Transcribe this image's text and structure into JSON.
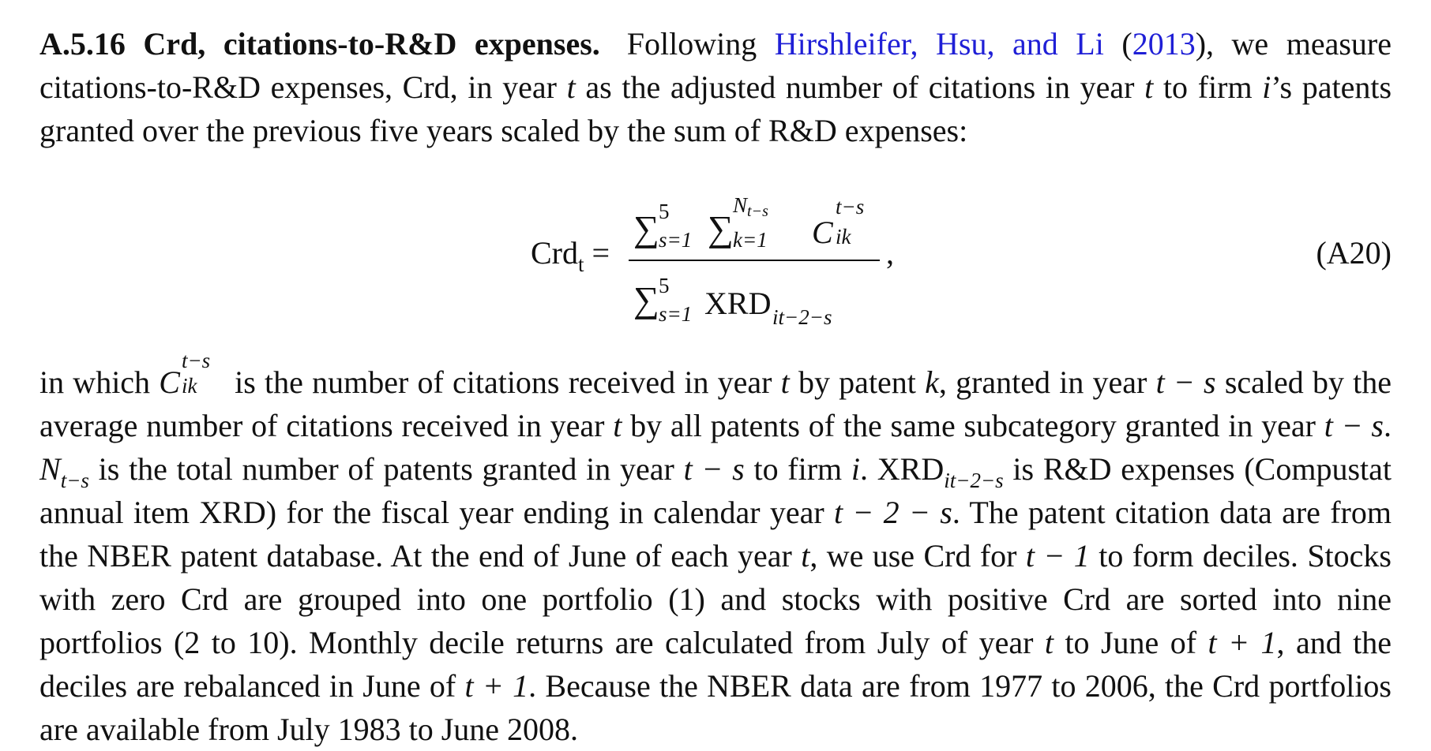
{
  "heading": "A.5.16 Crd, citations-to-R&D expenses.",
  "p1": {
    "lead": "Following",
    "link_text": "Hirshleifer, Hsu, and Li",
    "open_paren": " (",
    "link_year": "2013",
    "after_link": "), we measure citations-to-R&D expenses, Crd, in year ",
    "t1": "t",
    "mid1": " as the adjusted number of citations in year ",
    "t2": "t",
    "mid2": " to firm ",
    "i1": "i",
    "end": "’s patents granted over the previous five years scaled by the sum of R&D expenses:"
  },
  "equation": {
    "lhs_base": "Crd",
    "lhs_sub": "t",
    "equals": "=",
    "sigma": "∑",
    "sum1_upper": "5",
    "sum1_lower": "s=1",
    "sum2_upper": "N",
    "sum2_upper_sub": "t−s",
    "sum2_lower": "k=1",
    "term_base": "C",
    "term_sup": "t−s",
    "term_sub": "ik",
    "den_upper": "5",
    "den_lower": "s=1",
    "den_base": "XRD",
    "den_sub": "it−2−s",
    "comma": ",",
    "label": "(A20)"
  },
  "p2": {
    "a": "in which ",
    "c_base": "C",
    "c_sup": "t−s",
    "c_sub": "ik",
    "b": " is the number of citations received in year ",
    "t3": "t",
    "c": " by patent ",
    "k": "k",
    "d": ", granted in year ",
    "expr1": "t − s",
    "e": " scaled by the average number of citations received in year ",
    "t4": "t",
    "f": " by all patents of the same subcategory granted in year ",
    "expr2": "t − s",
    "g": ". ",
    "n_base": "N",
    "n_sub": "t−s",
    "h": " is the total number of patents granted in year ",
    "expr3": "t − s",
    "j": " to firm ",
    "i2": "i",
    "l": ". XRD",
    "xrd_sub": "it−2−s",
    "m": " is R&D expenses (Compustat annual item XRD) for the fiscal year ending in calendar year ",
    "expr4": "t − 2 − s",
    "n": ". The patent citation data are from the NBER patent database. At the end of June of each year ",
    "t5": "t",
    "o": ", we use Crd for ",
    "expr5": "t − 1",
    "p": " to form deciles. Stocks with zero Crd are grouped into one portfolio (1) and stocks with positive Crd are sorted into nine portfolios (2 to 10). Monthly decile returns are calculated from July of year ",
    "t6": "t",
    "q": " to June of ",
    "expr6": "t + 1",
    "r": ", and the deciles are rebalanced in June of ",
    "expr7": "t + 1",
    "s": ". Because the NBER data are from 1977 to 2006, the Crd portfolios are available from July 1983 to June 2008."
  },
  "colors": {
    "text": "#111111",
    "link": "#1f1fd6",
    "background": "#ffffff"
  }
}
